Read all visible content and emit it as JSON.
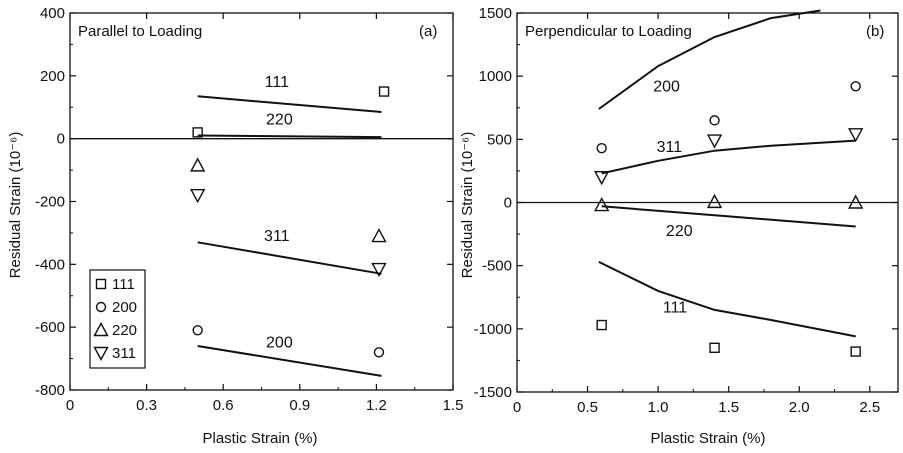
{
  "chart_data": [
    {
      "type": "scatter",
      "id": "a",
      "title": "Parallel to Loading",
      "panel_label": "(a)",
      "xlabel": "Plastic Strain (%)",
      "ylabel": "Residual Strain (10⁻⁶)",
      "xlim": [
        0,
        1.5
      ],
      "ylim": [
        -800,
        400
      ],
      "xticks": [
        0,
        0.3,
        0.6,
        0.9,
        1.2,
        1.5
      ],
      "xtick_labels": [
        "0",
        "0.3",
        "0.6",
        "0.9",
        "1.2",
        "1.5"
      ],
      "yticks": [
        -800,
        -600,
        -400,
        -200,
        0,
        200,
        400
      ],
      "ytick_labels": [
        "-800",
        "-600",
        "-400",
        "-200",
        "0",
        "200",
        "400"
      ],
      "zero_line": true,
      "legend": {
        "position": "bottom-left",
        "entries": [
          {
            "label": "111",
            "marker": "square"
          },
          {
            "label": "200",
            "marker": "circle"
          },
          {
            "label": "220",
            "marker": "triangle-up"
          },
          {
            "label": "311",
            "marker": "triangle-down"
          }
        ]
      },
      "points": [
        {
          "series": "111",
          "marker": "square",
          "x": [
            0.5,
            1.23
          ],
          "y": [
            20,
            150
          ]
        },
        {
          "series": "200",
          "marker": "circle",
          "x": [
            0.5,
            1.21
          ],
          "y": [
            -610,
            -680
          ]
        },
        {
          "series": "220",
          "marker": "triangle-up",
          "x": [
            0.5,
            1.21
          ],
          "y": [
            -85,
            -310
          ]
        },
        {
          "series": "311",
          "marker": "triangle-down",
          "x": [
            0.5,
            1.21
          ],
          "y": [
            -180,
            -415
          ]
        }
      ],
      "lines": [
        {
          "label": "111",
          "x": [
            0.5,
            1.22
          ],
          "y": [
            135,
            85
          ],
          "label_at": [
            0.81,
            165
          ]
        },
        {
          "label": "220",
          "x": [
            0.5,
            1.22
          ],
          "y": [
            10,
            5
          ],
          "label_at": [
            0.82,
            45
          ]
        },
        {
          "label": "311",
          "x": [
            0.5,
            1.22
          ],
          "y": [
            -330,
            -430
          ],
          "label_at": [
            0.81,
            -325
          ]
        },
        {
          "label": "200",
          "x": [
            0.5,
            1.22
          ],
          "y": [
            -660,
            -755
          ],
          "label_at": [
            0.82,
            -665
          ]
        }
      ]
    },
    {
      "type": "scatter",
      "id": "b",
      "title": "Perpendicular to Loading",
      "panel_label": "(b)",
      "xlabel": "Plastic Strain (%)",
      "ylabel": "Residual Strain (10⁻⁶)",
      "xlim": [
        0,
        2.7
      ],
      "ylim": [
        -1500,
        1500
      ],
      "xticks": [
        0,
        0.5,
        1.0,
        1.5,
        2.0,
        2.5
      ],
      "xtick_labels": [
        "0",
        "0.5",
        "1.0",
        "1.5",
        "2.0",
        "2.5"
      ],
      "yticks": [
        -1500,
        -1000,
        -500,
        0,
        500,
        1000,
        1500
      ],
      "ytick_labels": [
        "-1500",
        "-1000",
        "-500",
        "0",
        "500",
        "1000",
        "1500"
      ],
      "zero_line": true,
      "points": [
        {
          "series": "111",
          "marker": "square",
          "x": [
            0.6,
            1.4,
            2.4
          ],
          "y": [
            -970,
            -1150,
            -1180
          ]
        },
        {
          "series": "200",
          "marker": "circle",
          "x": [
            0.6,
            1.4,
            2.4
          ],
          "y": [
            430,
            650,
            920
          ]
        },
        {
          "series": "220",
          "marker": "triangle-up",
          "x": [
            0.6,
            1.4,
            2.4
          ],
          "y": [
            -20,
            5,
            0
          ]
        },
        {
          "series": "311",
          "marker": "triangle-down",
          "x": [
            0.6,
            1.4,
            2.4
          ],
          "y": [
            200,
            490,
            540
          ]
        }
      ],
      "lines": [
        {
          "label": "200",
          "x": [
            0.58,
            1.0,
            1.4,
            1.8,
            2.15
          ],
          "y": [
            740,
            1080,
            1310,
            1460,
            1520
          ],
          "label_at": [
            1.06,
            880
          ]
        },
        {
          "label": "311",
          "x": [
            0.6,
            1.0,
            1.4,
            1.8,
            2.4
          ],
          "y": [
            230,
            330,
            410,
            450,
            490
          ],
          "label_at": [
            1.08,
            400
          ]
        },
        {
          "label": "220",
          "x": [
            0.6,
            1.5,
            2.4
          ],
          "y": [
            -30,
            -110,
            -190
          ],
          "label_at": [
            1.15,
            -265
          ]
        },
        {
          "label": "111",
          "x": [
            0.58,
            1.0,
            1.4,
            1.8,
            2.4
          ],
          "y": [
            -470,
            -700,
            -850,
            -930,
            -1060
          ],
          "label_at": [
            1.12,
            -870
          ]
        }
      ]
    }
  ]
}
